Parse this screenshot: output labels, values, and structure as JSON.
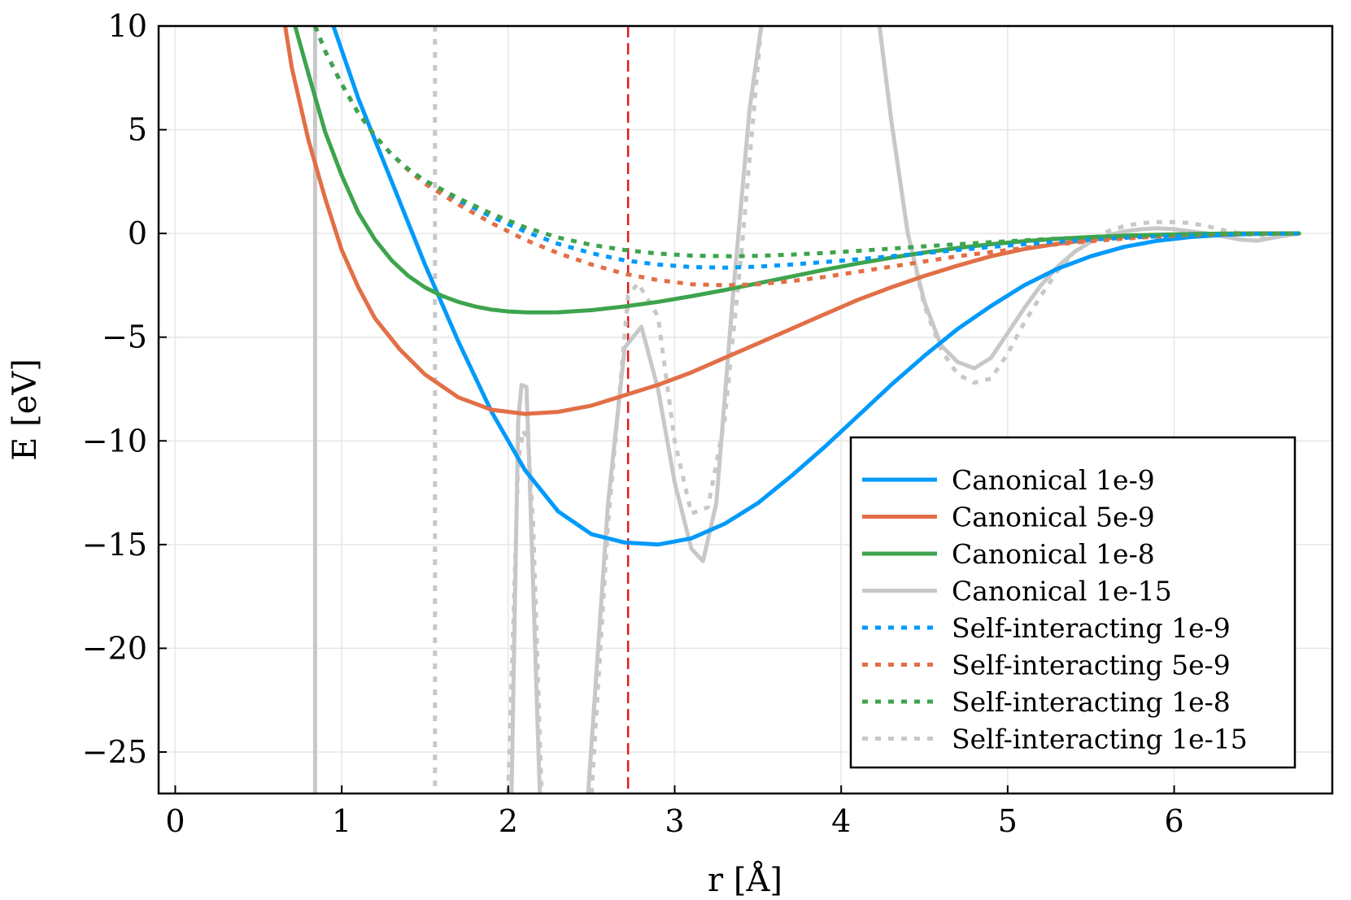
{
  "chart_data": {
    "type": "line",
    "title": "",
    "xlabel": "r [Å]",
    "ylabel": "E [eV]",
    "xlim": [
      -0.1,
      6.95
    ],
    "ylim": [
      -27,
      10
    ],
    "xticks": [
      0,
      1,
      2,
      3,
      4,
      5,
      6
    ],
    "xtick_labels": [
      "0",
      "1",
      "2",
      "3",
      "4",
      "5",
      "6"
    ],
    "yticks": [
      10,
      5,
      0,
      -5,
      -10,
      -15,
      -20,
      -25
    ],
    "ytick_labels": [
      "10",
      "5",
      "0",
      "−5",
      "−10",
      "−15",
      "−20",
      "−25"
    ],
    "grid": true,
    "legend_position": "bottom-right",
    "reference_line": {
      "x": 2.72,
      "color": "#e41a1c",
      "style": "dashed"
    },
    "series": [
      {
        "name": "Canonical 1e-9",
        "color": "#009afa",
        "style": "solid",
        "x": [
          0.95,
          1.1,
          1.3,
          1.5,
          1.7,
          1.9,
          2.1,
          2.3,
          2.5,
          2.7,
          2.9,
          3.1,
          3.3,
          3.5,
          3.7,
          3.9,
          4.1,
          4.3,
          4.5,
          4.7,
          4.9,
          5.1,
          5.3,
          5.5,
          5.7,
          5.9,
          6.1,
          6.3,
          6.5,
          6.75
        ],
        "y": [
          10,
          6.5,
          2.5,
          -1.5,
          -5.2,
          -8.6,
          -11.4,
          -13.4,
          -14.5,
          -14.9,
          -15,
          -14.7,
          -14,
          -13,
          -11.7,
          -10.3,
          -8.8,
          -7.3,
          -5.9,
          -4.6,
          -3.5,
          -2.5,
          -1.7,
          -1.1,
          -0.65,
          -0.35,
          -0.17,
          -0.07,
          -0.02,
          0
        ]
      },
      {
        "name": "Canonical 5e-9",
        "color": "#e26f46",
        "style": "solid",
        "x": [
          0.66,
          0.7,
          0.8,
          0.9,
          1.0,
          1.1,
          1.2,
          1.35,
          1.5,
          1.7,
          1.9,
          2.1,
          2.3,
          2.5,
          2.7,
          2.9,
          3.1,
          3.3,
          3.5,
          3.7,
          3.9,
          4.1,
          4.3,
          4.5,
          4.7,
          4.9,
          5.1,
          5.3,
          5.5,
          5.7,
          5.9,
          6.1,
          6.3,
          6.5,
          6.75
        ],
        "y": [
          10,
          8,
          4.5,
          1.7,
          -0.8,
          -2.6,
          -4.1,
          -5.6,
          -6.8,
          -7.9,
          -8.5,
          -8.7,
          -8.6,
          -8.3,
          -7.8,
          -7.3,
          -6.7,
          -6,
          -5.3,
          -4.6,
          -3.9,
          -3.2,
          -2.6,
          -2.05,
          -1.55,
          -1.1,
          -0.75,
          -0.5,
          -0.3,
          -0.16,
          -0.08,
          -0.03,
          -0.01,
          0,
          0
        ]
      },
      {
        "name": "Canonical 1e-8",
        "color": "#3da44d",
        "style": "solid",
        "x": [
          0.72,
          0.8,
          0.9,
          1.0,
          1.1,
          1.2,
          1.3,
          1.4,
          1.5,
          1.6,
          1.7,
          1.8,
          1.9,
          2.0,
          2.1,
          2.2,
          2.3,
          2.5,
          2.7,
          2.9,
          3.1,
          3.3,
          3.5,
          3.7,
          3.9,
          4.1,
          4.3,
          4.5,
          4.7,
          4.9,
          5.1,
          5.3,
          5.5,
          5.7,
          5.9,
          6.1,
          6.3,
          6.5,
          6.75
        ],
        "y": [
          10,
          7.7,
          4.9,
          2.8,
          1.0,
          -0.3,
          -1.3,
          -2.05,
          -2.6,
          -3.0,
          -3.3,
          -3.52,
          -3.67,
          -3.76,
          -3.8,
          -3.81,
          -3.8,
          -3.7,
          -3.52,
          -3.3,
          -3.03,
          -2.73,
          -2.4,
          -2.08,
          -1.75,
          -1.45,
          -1.17,
          -0.92,
          -0.7,
          -0.52,
          -0.37,
          -0.26,
          -0.17,
          -0.11,
          -0.06,
          -0.03,
          -0.01,
          0,
          0
        ]
      },
      {
        "name": "Canonical 1e-15",
        "color": "#c8c8c8",
        "style": "solid",
        "x": [
          0.84,
          0.84,
          0.84,
          null,
          2.02,
          2.06,
          2.08,
          2.11,
          2.13,
          2.19,
          null,
          2.48,
          2.6,
          2.7,
          2.8,
          2.9,
          3.0,
          3.1,
          3.17,
          3.25,
          3.35,
          3.45,
          3.52,
          null,
          4.23,
          4.3,
          4.4,
          4.5,
          4.6,
          4.7,
          4.8,
          4.9,
          5.0,
          5.1,
          5.2,
          5.3,
          5.4,
          5.5,
          5.6,
          5.7,
          5.8,
          5.9,
          6.0,
          6.1,
          6.2,
          6.3,
          6.4,
          6.5,
          6.6,
          6.75
        ],
        "y": [
          10,
          -10,
          -27,
          null,
          -27,
          -9,
          -7.3,
          -7.4,
          -12,
          -27,
          null,
          -27,
          -13,
          -5.5,
          -4.5,
          -7.5,
          -12,
          -15.2,
          -15.8,
          -13,
          -3,
          6,
          10,
          null,
          10,
          5.5,
          0,
          -3.3,
          -5.4,
          -6.2,
          -6.5,
          -6.0,
          -4.8,
          -3.6,
          -2.5,
          -1.6,
          -0.9,
          -0.4,
          -0.1,
          0.1,
          0.2,
          0.25,
          0.2,
          0.1,
          0,
          -0.15,
          -0.3,
          -0.35,
          -0.2,
          0
        ]
      },
      {
        "name": "Self-interacting 1e-9",
        "color": "#009afa",
        "style": "dashed",
        "x": [
          0.84,
          0.9,
          1.0,
          1.1,
          1.2,
          1.3,
          1.4,
          1.5,
          1.7,
          1.9,
          2.1,
          2.3,
          2.5,
          2.7,
          2.9,
          3.1,
          3.3,
          3.5,
          3.7,
          3.9,
          4.1,
          4.3,
          4.5,
          4.7,
          4.9,
          5.1,
          5.3,
          5.5,
          5.7,
          5.9,
          6.1,
          6.3,
          6.5,
          6.75
        ],
        "y": [
          10,
          8.8,
          7.2,
          5.8,
          4.7,
          3.8,
          3.1,
          2.5,
          1.6,
          0.8,
          0.1,
          -0.5,
          -0.95,
          -1.3,
          -1.5,
          -1.62,
          -1.65,
          -1.6,
          -1.5,
          -1.38,
          -1.25,
          -1.1,
          -0.95,
          -0.8,
          -0.65,
          -0.52,
          -0.4,
          -0.3,
          -0.21,
          -0.14,
          -0.08,
          -0.04,
          -0.01,
          0
        ]
      },
      {
        "name": "Self-interacting 5e-9",
        "color": "#e26f46",
        "style": "dashed",
        "x": [
          0.84,
          0.9,
          1.0,
          1.1,
          1.2,
          1.3,
          1.4,
          1.5,
          1.7,
          1.9,
          2.1,
          2.3,
          2.5,
          2.7,
          2.9,
          3.1,
          3.3,
          3.5,
          3.7,
          3.9,
          4.1,
          4.3,
          4.5,
          4.7,
          4.9,
          5.1,
          5.3,
          5.5,
          5.7,
          5.9,
          6.1,
          6.3,
          6.5,
          6.75
        ],
        "y": [
          10,
          8.8,
          7.2,
          5.8,
          4.7,
          3.8,
          3.05,
          2.4,
          1.4,
          0.5,
          -0.3,
          -0.95,
          -1.5,
          -1.95,
          -2.25,
          -2.45,
          -2.5,
          -2.45,
          -2.3,
          -2.1,
          -1.85,
          -1.6,
          -1.35,
          -1.1,
          -0.9,
          -0.7,
          -0.52,
          -0.37,
          -0.25,
          -0.15,
          -0.08,
          -0.04,
          -0.01,
          0
        ]
      },
      {
        "name": "Self-interacting 1e-8",
        "color": "#3da44d",
        "style": "dashed",
        "x": [
          0.84,
          0.9,
          1.0,
          1.1,
          1.2,
          1.3,
          1.4,
          1.5,
          1.7,
          1.9,
          2.1,
          2.3,
          2.5,
          2.7,
          2.9,
          3.1,
          3.3,
          3.5,
          3.7,
          3.9,
          4.1,
          4.3,
          4.5,
          4.7,
          4.9,
          5.1,
          5.3,
          5.5,
          5.7,
          5.9,
          6.1,
          6.3,
          6.5,
          6.75
        ],
        "y": [
          10,
          8.8,
          7.2,
          5.8,
          4.7,
          3.8,
          3.1,
          2.55,
          1.7,
          0.95,
          0.3,
          -0.2,
          -0.55,
          -0.8,
          -0.97,
          -1.07,
          -1.1,
          -1.08,
          -1.02,
          -0.94,
          -0.84,
          -0.73,
          -0.62,
          -0.52,
          -0.42,
          -0.33,
          -0.25,
          -0.18,
          -0.12,
          -0.08,
          -0.05,
          -0.02,
          -0.01,
          0
        ]
      },
      {
        "name": "Self-interacting 1e-15",
        "color": "#c8c8c8",
        "style": "dashed",
        "x": [
          1.56,
          1.56,
          1.56,
          null,
          2.0,
          2.06,
          2.09,
          2.12,
          2.15,
          2.2,
          null,
          2.5,
          2.6,
          2.72,
          2.78,
          2.9,
          3.0,
          3.1,
          3.2,
          3.3,
          3.4,
          3.52,
          null,
          4.23,
          4.3,
          4.4,
          4.5,
          4.6,
          4.7,
          4.8,
          4.9,
          5.0,
          5.1,
          5.2,
          5.3,
          5.4,
          5.5,
          5.6,
          5.7,
          5.8,
          5.9,
          6.0,
          6.1,
          6.2,
          6.3,
          6.4,
          6.5,
          6.6,
          6.75
        ],
        "y": [
          10,
          -10,
          -27,
          null,
          -27,
          -11,
          -9.5,
          -10,
          -14,
          -27,
          null,
          -27,
          -14,
          -3,
          -2.4,
          -4,
          -10,
          -13.5,
          -13.2,
          -9,
          -1,
          10,
          null,
          10,
          5.5,
          0,
          -3.5,
          -5.6,
          -6.8,
          -7.2,
          -7.0,
          -5.8,
          -4.3,
          -3.0,
          -1.8,
          -0.9,
          -0.3,
          0.1,
          0.35,
          0.5,
          0.55,
          0.55,
          0.5,
          0.35,
          0.15,
          0,
          -0.1,
          -0.1,
          0
        ]
      }
    ]
  }
}
